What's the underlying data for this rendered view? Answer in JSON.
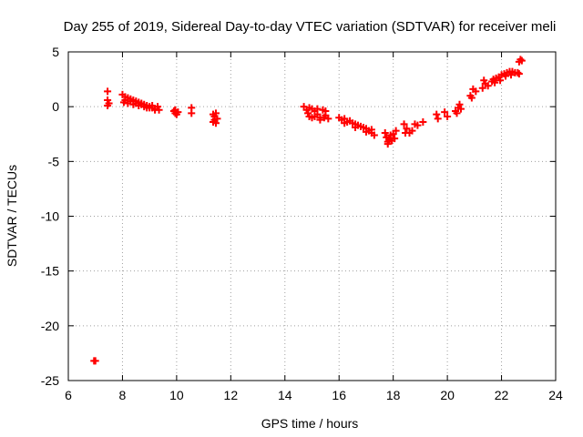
{
  "chart_data": {
    "type": "scatter",
    "title": "Day 255 of 2019, Sidereal Day-to-day VTEC variation (SDTVAR) for receiver meli",
    "xlabel": "GPS time / hours",
    "ylabel": "SDTVAR / TECUs",
    "xlim": [
      6,
      24
    ],
    "ylim": [
      -25,
      5
    ],
    "xticks": [
      6,
      8,
      10,
      12,
      14,
      16,
      18,
      20,
      22,
      24
    ],
    "yticks": [
      -25,
      -20,
      -15,
      -10,
      -5,
      0,
      5
    ],
    "xtick_labels": [
      "6",
      "8",
      "10",
      "12",
      "14",
      "16",
      "18",
      "20",
      "22",
      "24"
    ],
    "ytick_labels": [
      "-25",
      "-20",
      "-15",
      "-10",
      "-5",
      "0",
      "5"
    ],
    "grid": true,
    "marker": "plus",
    "color": "#ff0000",
    "series": [
      {
        "name": "SDTVAR",
        "points": [
          [
            6.95,
            -23.2
          ],
          [
            7.0,
            -23.2
          ],
          [
            7.45,
            1.4
          ],
          [
            7.45,
            0.6
          ],
          [
            7.5,
            0.3
          ],
          [
            7.45,
            0.1
          ],
          [
            8.0,
            1.1
          ],
          [
            8.1,
            0.9
          ],
          [
            8.2,
            0.8
          ],
          [
            8.3,
            0.7
          ],
          [
            8.4,
            0.6
          ],
          [
            8.5,
            0.5
          ],
          [
            8.6,
            0.4
          ],
          [
            8.7,
            0.3
          ],
          [
            8.8,
            0.2
          ],
          [
            8.9,
            0.1
          ],
          [
            9.0,
            0.0
          ],
          [
            9.1,
            -0.1
          ],
          [
            9.2,
            -0.2
          ],
          [
            9.35,
            -0.3
          ],
          [
            8.05,
            0.4
          ],
          [
            8.2,
            0.3
          ],
          [
            8.4,
            0.2
          ],
          [
            8.6,
            0.1
          ],
          [
            8.8,
            0.0
          ],
          [
            9.0,
            -0.1
          ],
          [
            9.2,
            -0.3
          ],
          [
            8.1,
            0.6
          ],
          [
            8.3,
            0.5
          ],
          [
            8.5,
            0.3
          ],
          [
            8.7,
            0.2
          ],
          [
            8.9,
            -0.1
          ],
          [
            9.1,
            0.1
          ],
          [
            9.3,
            0.0
          ],
          [
            9.9,
            -0.4
          ],
          [
            9.95,
            -0.6
          ],
          [
            10.0,
            -0.7
          ],
          [
            10.05,
            -0.5
          ],
          [
            9.95,
            -0.3
          ],
          [
            10.55,
            -0.1
          ],
          [
            10.55,
            -0.6
          ],
          [
            11.35,
            -0.7
          ],
          [
            11.4,
            -0.9
          ],
          [
            11.4,
            -1.2
          ],
          [
            11.45,
            -1.5
          ],
          [
            11.5,
            -1.1
          ],
          [
            11.35,
            -1.4
          ],
          [
            11.45,
            -0.6
          ],
          [
            14.7,
            0.0
          ],
          [
            14.8,
            -0.3
          ],
          [
            14.85,
            -0.6
          ],
          [
            14.9,
            -0.9
          ],
          [
            15.0,
            -0.2
          ],
          [
            15.0,
            -1.0
          ],
          [
            15.1,
            -0.4
          ],
          [
            15.2,
            -0.7
          ],
          [
            15.3,
            -1.0
          ],
          [
            15.4,
            -0.3
          ],
          [
            15.5,
            -0.8
          ],
          [
            15.6,
            -1.1
          ],
          [
            15.3,
            -1.2
          ],
          [
            15.5,
            -0.4
          ],
          [
            15.1,
            -0.9
          ],
          [
            14.9,
            -0.1
          ],
          [
            15.2,
            -0.2
          ],
          [
            15.45,
            -1.0
          ],
          [
            16.0,
            -1.0
          ],
          [
            16.1,
            -1.2
          ],
          [
            16.2,
            -1.1
          ],
          [
            16.3,
            -1.4
          ],
          [
            16.4,
            -1.3
          ],
          [
            16.5,
            -1.5
          ],
          [
            16.6,
            -1.6
          ],
          [
            16.7,
            -1.7
          ],
          [
            16.8,
            -1.8
          ],
          [
            16.9,
            -1.9
          ],
          [
            17.0,
            -2.0
          ],
          [
            17.1,
            -2.2
          ],
          [
            17.2,
            -2.4
          ],
          [
            17.3,
            -2.6
          ],
          [
            16.2,
            -1.5
          ],
          [
            16.6,
            -1.9
          ],
          [
            17.0,
            -2.3
          ],
          [
            17.2,
            -2.1
          ],
          [
            17.7,
            -2.4
          ],
          [
            17.75,
            -2.8
          ],
          [
            17.8,
            -3.2
          ],
          [
            17.85,
            -3.0
          ],
          [
            17.9,
            -2.6
          ],
          [
            17.8,
            -3.4
          ],
          [
            18.0,
            -2.5
          ],
          [
            18.05,
            -2.9
          ],
          [
            18.1,
            -2.2
          ],
          [
            17.95,
            -3.1
          ],
          [
            18.4,
            -1.6
          ],
          [
            18.45,
            -2.4
          ],
          [
            18.5,
            -2.0
          ],
          [
            18.6,
            -2.4
          ],
          [
            18.7,
            -2.2
          ],
          [
            18.8,
            -1.6
          ],
          [
            18.9,
            -1.7
          ],
          [
            19.1,
            -1.4
          ],
          [
            19.6,
            -0.7
          ],
          [
            19.65,
            -1.1
          ],
          [
            19.9,
            -0.5
          ],
          [
            20.0,
            -0.9
          ],
          [
            20.3,
            -0.4
          ],
          [
            20.35,
            -0.6
          ],
          [
            20.4,
            -0.1
          ],
          [
            20.45,
            0.2
          ],
          [
            20.5,
            -0.2
          ],
          [
            20.85,
            1.0
          ],
          [
            20.9,
            0.8
          ],
          [
            20.95,
            1.6
          ],
          [
            21.05,
            1.4
          ],
          [
            21.3,
            1.7
          ],
          [
            21.35,
            2.4
          ],
          [
            21.4,
            2.1
          ],
          [
            21.5,
            1.9
          ],
          [
            21.65,
            2.3
          ],
          [
            21.7,
            2.5
          ],
          [
            21.8,
            2.6
          ],
          [
            21.9,
            2.7
          ],
          [
            22.0,
            2.9
          ],
          [
            22.1,
            3.0
          ],
          [
            22.2,
            3.1
          ],
          [
            22.3,
            3.2
          ],
          [
            22.4,
            3.2
          ],
          [
            22.5,
            3.1
          ],
          [
            22.6,
            3.1
          ],
          [
            22.65,
            3.0
          ],
          [
            21.75,
            2.2
          ],
          [
            21.95,
            2.4
          ],
          [
            22.15,
            2.8
          ],
          [
            22.35,
            2.9
          ],
          [
            22.65,
            4.1
          ],
          [
            22.7,
            4.3
          ],
          [
            22.75,
            4.2
          ]
        ]
      }
    ]
  }
}
